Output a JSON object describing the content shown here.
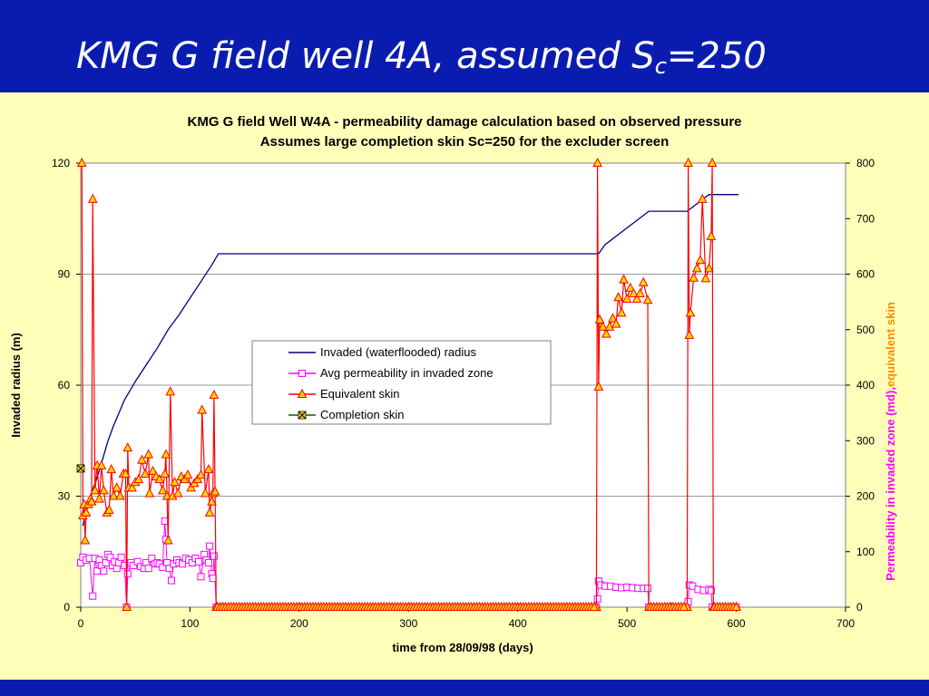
{
  "slide": {
    "title_main": "KMG G field well 4A, assumed S",
    "title_sub": "c",
    "title_tail": "=250"
  },
  "colors": {
    "title_bar": "#0A1CB0",
    "background": "#FFFFB9",
    "plot_area": "#FFFFFF",
    "invaded_radius": "#000080",
    "avg_permeability": "#FF00FF",
    "equivalent_skin": "#FF0000",
    "equivalent_skin_marker_fill": "#FFD700",
    "completion_skin": "#006400",
    "completion_skin_marker_fill": "#FFD700",
    "gridline": "#999999",
    "right_axis_label_primary": "#FF00FF",
    "right_axis_label_secondary": "#FF8C00"
  },
  "chart_data": {
    "type": "line",
    "title": "KMG G field Well W4A - permeability damage calculation based on observed pressure",
    "subtitle": "Assumes large completion skin Sc=250 for the excluder screen",
    "xlabel": "time from 28/09/98 (days)",
    "ylabel_left": "Invaded radius (m)",
    "ylabel_right_part1": "Permeability in invaded zone (md),",
    "ylabel_right_part2": "equivalent skin",
    "xlim": [
      0,
      700
    ],
    "ylim_left": [
      0,
      120
    ],
    "ylim_right": [
      0,
      800
    ],
    "x_ticks": [
      "0",
      "100",
      "200",
      "300",
      "400",
      "500",
      "600",
      "700"
    ],
    "y_left_ticks": [
      "0",
      "30",
      "60",
      "90",
      "120"
    ],
    "y_right_ticks": [
      "0",
      "100",
      "200",
      "300",
      "400",
      "500",
      "600",
      "700",
      "800"
    ],
    "grid": "horizontal",
    "legend_position": "center",
    "series": [
      {
        "name": "Invaded (waterflooded) radius",
        "axis": "left",
        "marker": "none",
        "points": [
          [
            2,
            22
          ],
          [
            5,
            27
          ],
          [
            10,
            31
          ],
          [
            15,
            35
          ],
          [
            20,
            40
          ],
          [
            25,
            45
          ],
          [
            30,
            49
          ],
          [
            40,
            56
          ],
          [
            50,
            61
          ],
          [
            60,
            65.5
          ],
          [
            70,
            70
          ],
          [
            80,
            75
          ],
          [
            90,
            79
          ],
          [
            100,
            83.5
          ],
          [
            110,
            88
          ],
          [
            120,
            92.5
          ],
          [
            126,
            95.5
          ],
          [
            180,
            95.5
          ],
          [
            474,
            95.5
          ],
          [
            480,
            98
          ],
          [
            500,
            102.5
          ],
          [
            520,
            107
          ],
          [
            555,
            107
          ],
          [
            575,
            111.5
          ],
          [
            602,
            111.5
          ]
        ]
      },
      {
        "name": "Avg permeability in invaded zone",
        "axis": "right",
        "marker": "square",
        "points": [
          [
            0,
            80
          ],
          [
            2,
            90
          ],
          [
            5,
            85
          ],
          [
            8,
            88
          ],
          [
            11,
            20
          ],
          [
            13,
            88
          ],
          [
            15,
            65
          ],
          [
            17,
            85
          ],
          [
            19,
            75
          ],
          [
            21,
            65
          ],
          [
            23,
            80
          ],
          [
            25,
            95
          ],
          [
            27,
            90
          ],
          [
            29,
            75
          ],
          [
            31,
            82
          ],
          [
            33,
            70
          ],
          [
            35,
            80
          ],
          [
            37,
            90
          ],
          [
            40,
            75
          ],
          [
            42,
            0
          ],
          [
            43,
            60
          ],
          [
            46,
            80
          ],
          [
            48,
            75
          ],
          [
            52,
            82
          ],
          [
            55,
            73
          ],
          [
            58,
            70
          ],
          [
            60,
            80
          ],
          [
            62,
            70
          ],
          [
            65,
            88
          ],
          [
            68,
            78
          ],
          [
            70,
            80
          ],
          [
            72,
            78
          ],
          [
            75,
            72
          ],
          [
            77,
            155
          ],
          [
            78,
            122
          ],
          [
            79,
            80
          ],
          [
            81,
            70
          ],
          [
            83,
            48
          ],
          [
            85,
            78
          ],
          [
            88,
            85
          ],
          [
            90,
            80
          ],
          [
            93,
            78
          ],
          [
            96,
            88
          ],
          [
            99,
            85
          ],
          [
            102,
            80
          ],
          [
            105,
            88
          ],
          [
            108,
            82
          ],
          [
            110,
            55
          ],
          [
            113,
            95
          ],
          [
            115,
            85
          ],
          [
            117,
            80
          ],
          [
            118,
            110
          ],
          [
            120,
            60
          ],
          [
            121,
            52
          ],
          [
            122,
            92
          ],
          [
            124,
            0
          ],
          [
            130,
            0
          ],
          [
            200,
            0
          ],
          [
            300,
            0
          ],
          [
            400,
            0
          ],
          [
            472,
            0
          ],
          [
            473,
            15
          ],
          [
            474,
            47
          ],
          [
            476,
            40
          ],
          [
            480,
            38
          ],
          [
            485,
            38
          ],
          [
            490,
            36
          ],
          [
            495,
            35
          ],
          [
            500,
            36
          ],
          [
            505,
            35
          ],
          [
            510,
            34
          ],
          [
            515,
            34
          ],
          [
            519,
            34
          ],
          [
            520,
            0
          ],
          [
            540,
            0
          ],
          [
            555,
            0
          ],
          [
            556,
            10
          ],
          [
            557,
            40
          ],
          [
            560,
            38
          ],
          [
            565,
            32
          ],
          [
            570,
            30
          ],
          [
            575,
            32
          ],
          [
            577,
            30
          ],
          [
            578,
            0
          ],
          [
            600,
            0
          ]
        ]
      },
      {
        "name": "Equivalent skin",
        "axis": "right",
        "marker": "triangle",
        "points": [
          [
            1,
            800
          ],
          [
            2,
            165
          ],
          [
            3,
            185
          ],
          [
            4,
            120
          ],
          [
            5,
            170
          ],
          [
            7,
            185
          ],
          [
            9,
            195
          ],
          [
            10,
            190
          ],
          [
            11,
            735
          ],
          [
            13,
            210
          ],
          [
            15,
            255
          ],
          [
            17,
            195
          ],
          [
            19,
            255
          ],
          [
            21,
            210
          ],
          [
            24,
            170
          ],
          [
            26,
            175
          ],
          [
            28,
            248
          ],
          [
            30,
            200
          ],
          [
            33,
            215
          ],
          [
            36,
            200
          ],
          [
            39,
            240
          ],
          [
            41,
            240
          ],
          [
            42,
            0
          ],
          [
            43,
            287
          ],
          [
            44,
            215
          ],
          [
            47,
            215
          ],
          [
            50,
            225
          ],
          [
            53,
            230
          ],
          [
            56,
            265
          ],
          [
            59,
            240
          ],
          [
            62,
            275
          ],
          [
            63,
            205
          ],
          [
            66,
            245
          ],
          [
            69,
            235
          ],
          [
            72,
            230
          ],
          [
            75,
            210
          ],
          [
            77,
            240
          ],
          [
            78,
            275
          ],
          [
            79,
            200
          ],
          [
            80,
            120
          ],
          [
            82,
            388
          ],
          [
            84,
            200
          ],
          [
            86,
            225
          ],
          [
            89,
            205
          ],
          [
            92,
            235
          ],
          [
            95,
            230
          ],
          [
            98,
            238
          ],
          [
            101,
            215
          ],
          [
            104,
            223
          ],
          [
            107,
            230
          ],
          [
            110,
            238
          ],
          [
            111,
            355
          ],
          [
            114,
            205
          ],
          [
            117,
            248
          ],
          [
            118,
            170
          ],
          [
            120,
            190
          ],
          [
            121,
            205
          ],
          [
            122,
            382
          ],
          [
            123,
            208
          ],
          [
            124,
            0
          ],
          [
            130,
            0
          ],
          [
            200,
            0
          ],
          [
            300,
            0
          ],
          [
            400,
            0
          ],
          [
            472,
            0
          ],
          [
            473,
            800
          ],
          [
            474,
            397
          ],
          [
            475,
            518
          ],
          [
            478,
            505
          ],
          [
            481,
            492
          ],
          [
            484,
            505
          ],
          [
            487,
            520
          ],
          [
            490,
            510
          ],
          [
            492,
            558
          ],
          [
            495,
            530
          ],
          [
            497,
            590
          ],
          [
            500,
            555
          ],
          [
            503,
            575
          ],
          [
            506,
            565
          ],
          [
            509,
            555
          ],
          [
            512,
            565
          ],
          [
            515,
            585
          ],
          [
            519,
            553
          ],
          [
            520,
            0
          ],
          [
            540,
            0
          ],
          [
            555,
            0
          ],
          [
            556,
            800
          ],
          [
            557,
            490
          ],
          [
            558,
            530
          ],
          [
            561,
            593
          ],
          [
            564,
            610
          ],
          [
            567,
            625
          ],
          [
            569,
            735
          ],
          [
            572,
            592
          ],
          [
            575,
            610
          ],
          [
            577,
            668
          ],
          [
            578,
            800
          ],
          [
            579,
            0
          ],
          [
            600,
            0
          ]
        ]
      },
      {
        "name": "Completion skin",
        "axis": "right",
        "marker": "x-square",
        "points": [
          [
            0,
            250
          ]
        ]
      }
    ]
  }
}
